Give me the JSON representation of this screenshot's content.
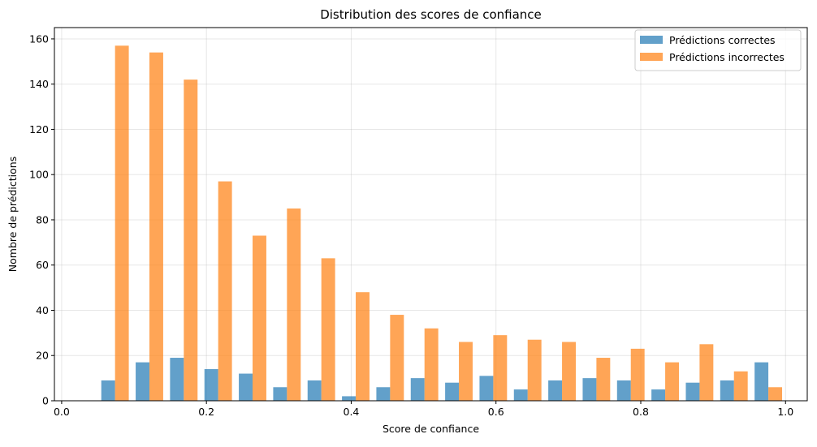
{
  "chart_data": {
    "type": "bar",
    "title": "Distribution des scores de confiance",
    "xlabel": "Score de confiance",
    "ylabel": "Nombre de prédictions",
    "xlim": [
      -0.01,
      1.03
    ],
    "ylim": [
      0,
      165
    ],
    "grid": true,
    "legend_position": "top-right",
    "bin_edges": [
      0.05,
      0.0975,
      0.145,
      0.1925,
      0.24,
      0.2875,
      0.335,
      0.3825,
      0.43,
      0.4775,
      0.525,
      0.5725,
      0.62,
      0.6675,
      0.715,
      0.7625,
      0.81,
      0.8575,
      0.905,
      0.9525,
      1.0
    ],
    "x_ticks": [
      0.0,
      0.2,
      0.4,
      0.6,
      0.8,
      1.0
    ],
    "x_tick_labels": [
      "0.0",
      "0.2",
      "0.4",
      "0.6",
      "0.8",
      "1.0"
    ],
    "y_ticks": [
      0,
      20,
      40,
      60,
      80,
      100,
      120,
      140,
      160
    ],
    "y_tick_labels": [
      "0",
      "20",
      "40",
      "60",
      "80",
      "100",
      "120",
      "140",
      "160"
    ],
    "series": [
      {
        "name": "Prédictions correctes",
        "color": "#1f77b4",
        "opacity": 0.7,
        "values": [
          9,
          17,
          19,
          14,
          12,
          6,
          9,
          2,
          6,
          10,
          8,
          11,
          5,
          9,
          10,
          9,
          5,
          8,
          9,
          17
        ]
      },
      {
        "name": "Prédictions incorrectes",
        "color": "#ff7f0e",
        "opacity": 0.7,
        "values": [
          157,
          154,
          142,
          97,
          73,
          85,
          63,
          48,
          38,
          32,
          26,
          29,
          27,
          26,
          19,
          23,
          17,
          25,
          13,
          6
        ]
      }
    ]
  }
}
